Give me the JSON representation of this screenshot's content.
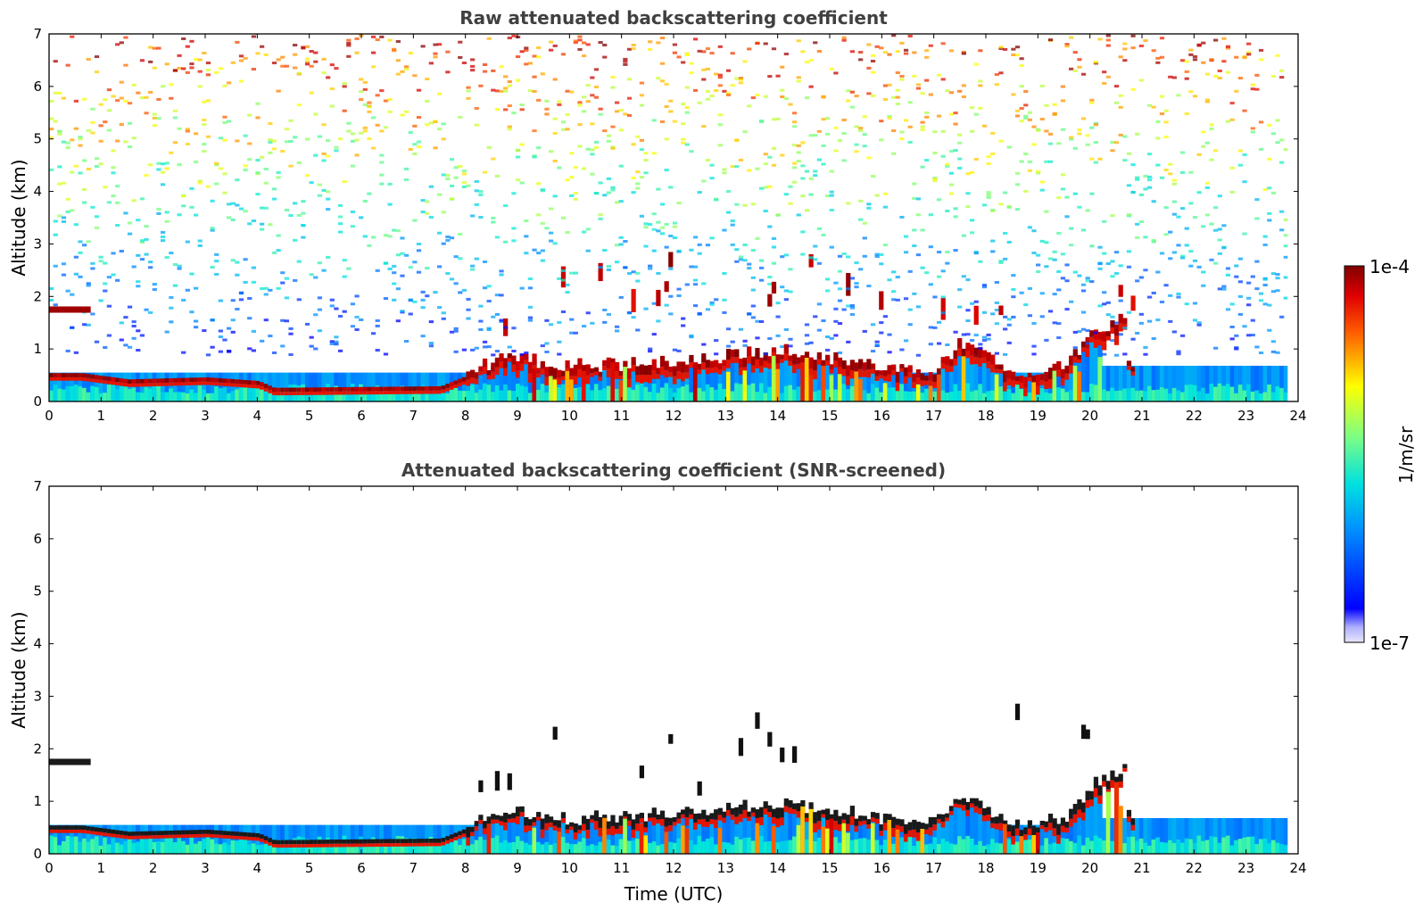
{
  "chart_data": [
    {
      "type": "heatmap",
      "title": "Raw attenuated backscattering coefficient",
      "ylabel": "Altitude (km)",
      "xlabel": "",
      "xlim": [
        0,
        24
      ],
      "ylim": [
        0,
        7
      ],
      "xticks": [
        "0",
        "1",
        "2",
        "3",
        "4",
        "5",
        "6",
        "7",
        "8",
        "9",
        "10",
        "11",
        "12",
        "13",
        "14",
        "15",
        "16",
        "17",
        "18",
        "19",
        "20",
        "21",
        "22",
        "23",
        "24"
      ],
      "yticks": [
        "0",
        "1",
        "2",
        "3",
        "4",
        "5",
        "6",
        "7"
      ],
      "data_end_time": 23.8,
      "layers": {
        "elevated_layer_early": {
          "t_start": 0.0,
          "t_end": 0.8,
          "altitude": 1.75
        },
        "boundary_layer_top": [
          {
            "t": 0.6,
            "alt": 0.5
          },
          {
            "t": 1.5,
            "alt": 0.38
          },
          {
            "t": 3.0,
            "alt": 0.42
          },
          {
            "t": 4.0,
            "alt": 0.35
          },
          {
            "t": 4.3,
            "alt": 0.22
          },
          {
            "t": 7.5,
            "alt": 0.25
          },
          {
            "t": 8.0,
            "alt": 0.45
          },
          {
            "t": 8.7,
            "alt": 0.8
          },
          {
            "t": 10.0,
            "alt": 0.6
          },
          {
            "t": 12.0,
            "alt": 0.7
          },
          {
            "t": 14.0,
            "alt": 0.9
          },
          {
            "t": 16.0,
            "alt": 0.6
          },
          {
            "t": 17.0,
            "alt": 0.55
          },
          {
            "t": 17.5,
            "alt": 1.05
          },
          {
            "t": 18.5,
            "alt": 0.45
          },
          {
            "t": 19.5,
            "alt": 0.6
          },
          {
            "t": 20.0,
            "alt": 1.2
          },
          {
            "t": 20.7,
            "alt": 1.6
          }
        ]
      },
      "colorbar": {
        "min_label": "1e-7",
        "max_label": "1e-4",
        "label": "1/m/sr",
        "colormap": "jet"
      }
    },
    {
      "type": "heatmap",
      "title": "Attenuated backscattering coefficient (SNR-screened)",
      "ylabel": "Altitude (km)",
      "xlabel": "Time (UTC)",
      "xlim": [
        0,
        24
      ],
      "ylim": [
        0,
        7
      ],
      "xticks": [
        "0",
        "1",
        "2",
        "3",
        "4",
        "5",
        "6",
        "7",
        "8",
        "9",
        "10",
        "11",
        "12",
        "13",
        "14",
        "15",
        "16",
        "17",
        "18",
        "19",
        "20",
        "21",
        "22",
        "23",
        "24"
      ],
      "yticks": [
        "0",
        "1",
        "2",
        "3",
        "4",
        "5",
        "6",
        "7"
      ],
      "data_end_time": 23.8,
      "colorbar": {
        "min_label": "1e-7",
        "max_label": "1e-4",
        "label": "1/m/sr",
        "colormap": "jet"
      }
    }
  ],
  "colorbar": {
    "max_label": "1e-4",
    "min_label": "1e-7",
    "unit_label": "1/m/sr"
  }
}
